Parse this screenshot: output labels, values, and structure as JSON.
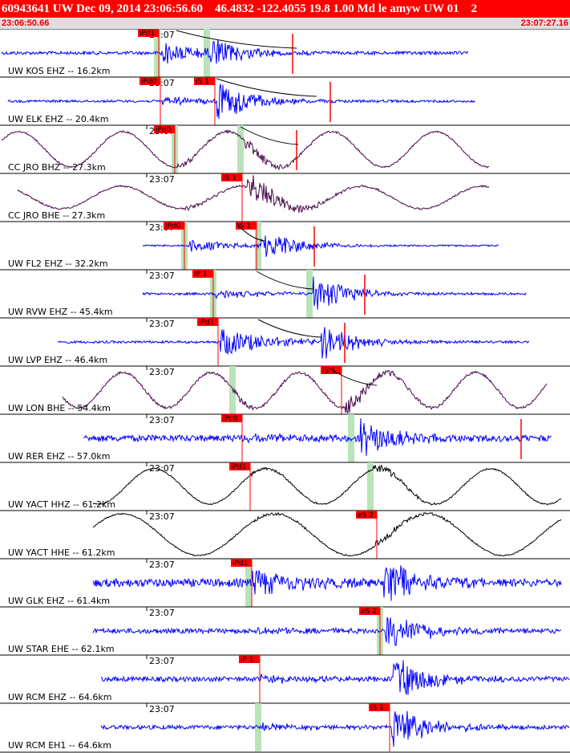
{
  "header": {
    "title": "60943641 UW Dec 09, 2014 23:06:56.60    46.4832 -122.4055 19.8 1.00 Md le amyw UW 01    2",
    "start_time": "23:06:50.66",
    "end_time": "23:07:27.16"
  },
  "colors": {
    "title_bg": "#ff0000",
    "trace_short_period": "#0000ff",
    "trace_broadband": "#4a0a4a",
    "trace_strong_motion": "#000000",
    "pick_marker": "#ff0000",
    "arrival_band": "#b9e3b9"
  },
  "traces": [
    {
      "label": "UW KOS EHZ -- 16.2km",
      "minute": "23:07",
      "picks": [
        {
          "text": "iPd1"
        }
      ],
      "color": "#0000ff"
    },
    {
      "label": "UW ELK EHZ -- 20.4km",
      "minute": "23:07",
      "picks": [
        {
          "text": "iPd0"
        },
        {
          "text": "iS 1"
        }
      ],
      "color": "#0000ff"
    },
    {
      "label": "CC JRO BHZ -- 27.3km",
      "minute": "23:07",
      "picks": [
        {
          "text": "iPd0"
        }
      ],
      "color": "#4a0a4a"
    },
    {
      "label": "CC JRO BHE -- 27.3km",
      "minute": "23:07",
      "picks": [
        {
          "text": "iS 1"
        }
      ],
      "color": "#4a0a4a"
    },
    {
      "label": "UW FL2 EHZ -- 32.2km",
      "minute": "23:07",
      "picks": [
        {
          "text": "iPd0"
        },
        {
          "text": "iS 1"
        }
      ],
      "color": "#0000ff"
    },
    {
      "label": "UW RVW EHZ -- 45.4km",
      "minute": "23:07",
      "picks": [
        {
          "text": "iP 1"
        }
      ],
      "color": "#0000ff"
    },
    {
      "label": "UW LVP EHZ -- 46.4km",
      "minute": "23:07",
      "picks": [
        {
          "text": "iPd1"
        }
      ],
      "color": "#0000ff"
    },
    {
      "label": "UW LON BHE -- 54.4km",
      "minute": "23:07",
      "picks": [
        {
          "text": "iS 1"
        }
      ],
      "color": "#4a0a4a"
    },
    {
      "label": "UW RER EHZ -- 57.0km",
      "minute": "23:07",
      "picks": [
        {
          "text": "iPc0"
        }
      ],
      "color": "#0000ff"
    },
    {
      "label": "UW YACT HHZ -- 61.2km",
      "minute": "23:07",
      "picks": [
        {
          "text": "iPd1"
        }
      ],
      "color": "#000000"
    },
    {
      "label": "UW YACT HHE -- 61.2km",
      "minute": "23:07",
      "picks": [
        {
          "text": "eS 2"
        }
      ],
      "color": "#000000"
    },
    {
      "label": "UW GLK EHZ -- 61.4km",
      "minute": "23:07",
      "picks": [
        {
          "text": "iPd1"
        }
      ],
      "color": "#0000ff"
    },
    {
      "label": "UW STAR EHE -- 62.1km",
      "minute": "23:07",
      "picks": [
        {
          "text": "eS 2"
        }
      ],
      "color": "#0000ff"
    },
    {
      "label": "UW RCM EHZ -- 64.6km",
      "minute": "23:07",
      "picks": [
        {
          "text": "iP 1"
        }
      ],
      "color": "#0000ff"
    },
    {
      "label": "UW RCM EH1 -- 64.6km",
      "minute": "23:07",
      "picks": [
        {
          "text": "iS 1"
        }
      ],
      "color": "#0000ff"
    }
  ]
}
